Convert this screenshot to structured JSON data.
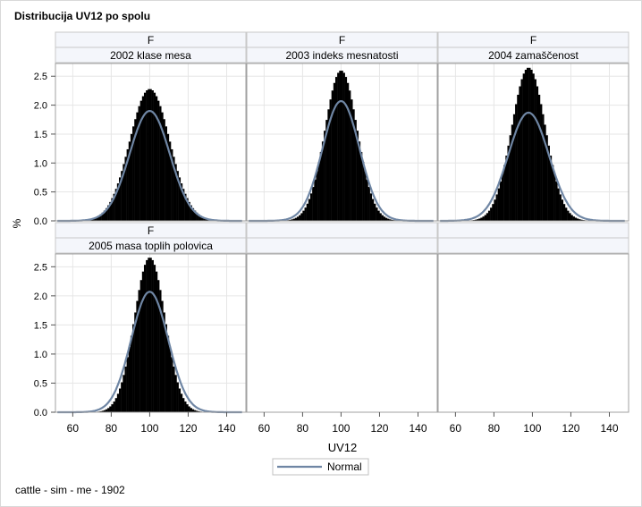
{
  "title": "Distribucija UV12 po spolu",
  "footnote": "cattle - sim - me - 1902",
  "colors": {
    "histogram": "#000000",
    "normal_curve": "#6f86a4",
    "header_fill": "#f4f6fb",
    "grid": "#e6e6e6",
    "axis": "#a0a0a0"
  },
  "chart_data": {
    "type": "histogram-panel",
    "xlabel": "UV12",
    "ylabel": "%",
    "xlim": [
      51,
      150
    ],
    "ylim": [
      0,
      2.72
    ],
    "x_ticks": [
      60,
      80,
      100,
      120,
      140
    ],
    "y_ticks": [
      0.0,
      0.5,
      1.0,
      1.5,
      2.0,
      2.5
    ],
    "y_tick_labels": [
      "0.0",
      "0.5",
      "1.0",
      "1.5",
      "2.0",
      "2.5"
    ],
    "grid": true,
    "legend": {
      "position": "bottom",
      "entries": [
        "Normal"
      ]
    },
    "panels": [
      {
        "row_header": "F",
        "header": "2002 klase mesa",
        "hist_mean": 100,
        "hist_sd": 10.4,
        "hist_peak": 2.28,
        "normal_mean": 100,
        "normal_sd": 10.5,
        "normal_peak": 1.9
      },
      {
        "row_header": "F",
        "header": "2003 indeks mesnatosti",
        "hist_mean": 100,
        "hist_sd": 8.4,
        "hist_peak": 2.6,
        "normal_mean": 100,
        "normal_sd": 9.6,
        "normal_peak": 2.07
      },
      {
        "row_header": "F",
        "header": "2004 zamaščenost",
        "hist_mean": 98,
        "hist_sd": 8.8,
        "hist_peak": 2.65,
        "normal_mean": 98,
        "normal_sd": 10.6,
        "normal_peak": 1.87
      },
      {
        "row_header": "F",
        "header": "2005 masa toplih polovica",
        "hist_mean": 100,
        "hist_sd": 8.0,
        "hist_peak": 2.66,
        "normal_mean": 100,
        "normal_sd": 9.6,
        "normal_peak": 2.07
      },
      {
        "row_header": "",
        "header": "",
        "empty": true
      },
      {
        "row_header": "",
        "header": "",
        "empty": true
      }
    ]
  }
}
